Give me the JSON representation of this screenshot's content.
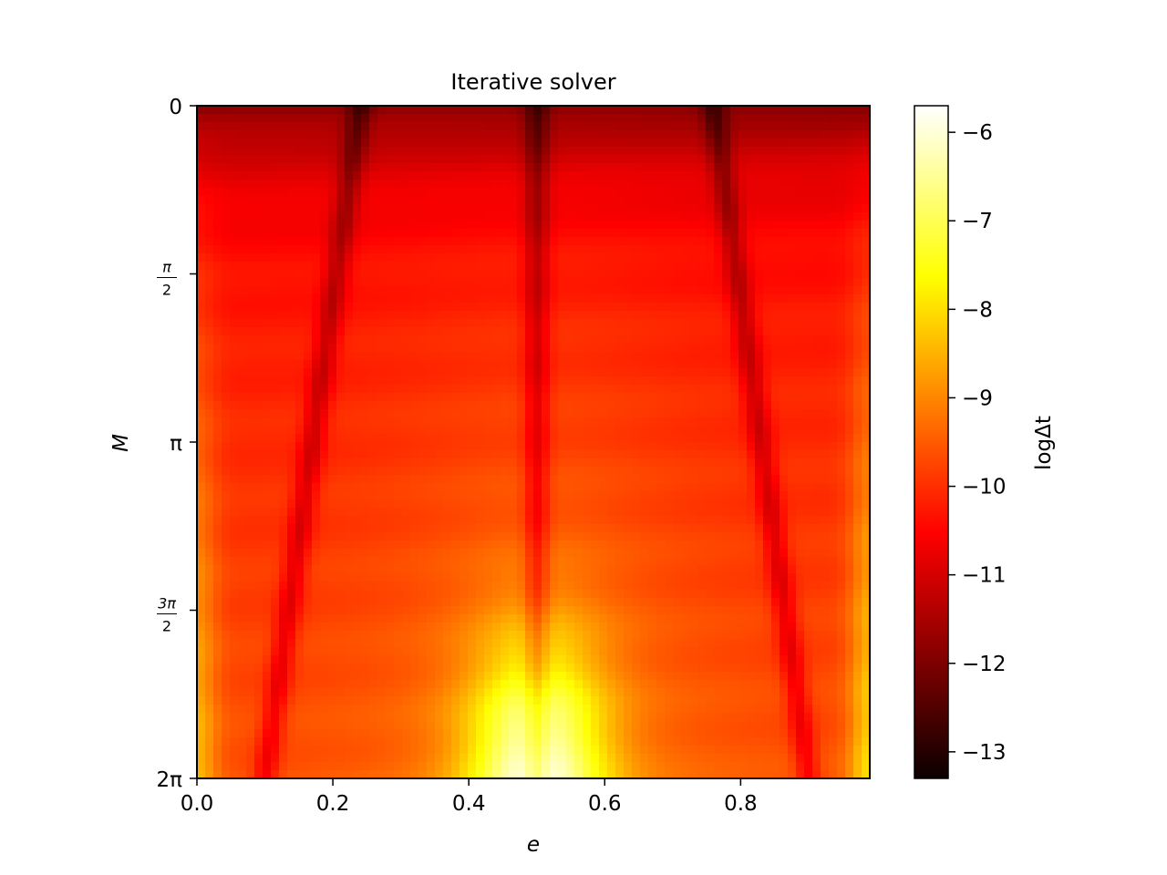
{
  "chart_data": {
    "type": "heatmap",
    "title": "Iterative solver",
    "xlabel": "e",
    "ylabel": "M",
    "colorbar_label": "logΔt",
    "colormap": "hot",
    "x_range": [
      0,
      0.99
    ],
    "y_range_label": [
      "0",
      "2π"
    ],
    "y_axis_inverted": true,
    "x_ticks": [
      "0.0",
      "0.2",
      "0.4",
      "0.6",
      "0.8"
    ],
    "x_tick_values": [
      0,
      0.2,
      0.4,
      0.6,
      0.8
    ],
    "y_ticks": [
      {
        "value": 0,
        "num": "0",
        "den": ""
      },
      {
        "value": 1.5708,
        "num": "π",
        "den": "2"
      },
      {
        "value": 3.1416,
        "num": "π",
        "den": ""
      },
      {
        "value": 4.7124,
        "num": "3π",
        "den": "2"
      },
      {
        "value": 6.2832,
        "num": "2π",
        "den": ""
      }
    ],
    "colorbar_range": [
      -13.3,
      -5.7
    ],
    "colorbar_ticks": [
      -13,
      -12,
      -11,
      -10,
      -9,
      -8,
      -7,
      -6
    ],
    "colorbar_tick_labels": [
      "−13",
      "−12",
      "−11",
      "−10",
      "−9",
      "−8",
      "−7",
      "−6"
    ],
    "grid": false,
    "features": {
      "dark_ridges_e": [
        0.24,
        0.5,
        0.76
      ],
      "bright_peak": {
        "e": 0.5,
        "M": 6.2832,
        "value": -6.5
      },
      "typical_value": -10.5
    }
  },
  "colors": {
    "axis": "#000000",
    "background": "#ffffff"
  }
}
